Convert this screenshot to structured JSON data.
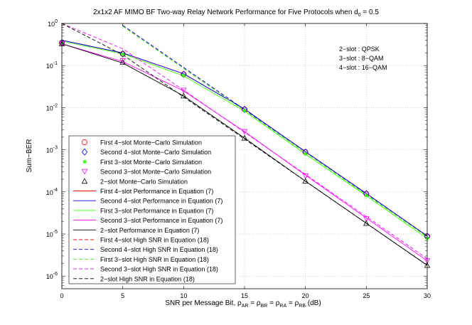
{
  "chart_data": {
    "type": "line",
    "title_main": "2x1x2 AF MIMO BF Two-way Relay Network Performance for Five Protocols when d",
    "title_sub": "0",
    "title_tail": " = 0.5",
    "xlabel": {
      "prefix": "SNR per Message Bit, ",
      "rho": "ρ",
      "sub_AR": "AR",
      "sub_BR": "BR",
      "sub_RA": "RA",
      "sub_RB": "RB",
      "eq": " = ",
      "unit": " (dB)"
    },
    "ylabel": "Sum−BER",
    "xlim": [
      0,
      30
    ],
    "ylim_log10": [
      -6.3,
      0
    ],
    "x_ticks": [
      "0",
      "5",
      "10",
      "15",
      "20",
      "25",
      "30"
    ],
    "x_tick_values": [
      0,
      5,
      10,
      15,
      20,
      25,
      30
    ],
    "y_ticks": [
      {
        "base": "10",
        "exp": "0",
        "value": 0
      },
      {
        "base": "10",
        "exp": "-1",
        "value": -1
      },
      {
        "base": "10",
        "exp": "-2",
        "value": -2
      },
      {
        "base": "10",
        "exp": "-3",
        "value": -3
      },
      {
        "base": "10",
        "exp": "-4",
        "value": -4
      },
      {
        "base": "10",
        "exp": "-5",
        "value": -5
      },
      {
        "base": "10",
        "exp": "-6",
        "value": -6
      }
    ],
    "annotation": [
      "2−slot : QPSK",
      "3−slot : 8−QAM",
      "4−slot : 16−QAM"
    ],
    "x": [
      0,
      5,
      10,
      15,
      20,
      25,
      30
    ],
    "colors": {
      "red": "#ff0000",
      "blue": "#0000ff",
      "green": "#33ff00",
      "magenta": "#ff00ff",
      "black": "#000000",
      "grid": "#b4b4b4"
    },
    "series": [
      {
        "name": "First 4−slot Monte−Carlo Simulation",
        "style": "marker",
        "marker": "circle",
        "color": "red",
        "values": [
          0.35,
          0.19,
          0.062,
          0.0091,
          0.00088,
          9e-05,
          8.8e-06
        ]
      },
      {
        "name": "Second 4−slot Monte−Carlo Simulation",
        "style": "marker",
        "marker": "diamond",
        "color": "blue",
        "values": [
          0.35,
          0.19,
          0.062,
          0.0091,
          0.00088,
          9e-05,
          8.8e-06
        ]
      },
      {
        "name": "First 3−slot Monte−Carlo Simulation",
        "style": "marker",
        "marker": "star",
        "color": "green",
        "values": [
          0.35,
          0.185,
          0.058,
          0.0085,
          0.0008,
          8.2e-05,
          7.8e-06
        ]
      },
      {
        "name": "Second 3−slot Monte−Carlo Simulation",
        "style": "marker",
        "marker": "triangle-down",
        "color": "magenta",
        "values": [
          0.33,
          0.13,
          0.026,
          0.0027,
          0.00024,
          2.3e-05,
          2.3e-06
        ]
      },
      {
        "name": "2−slot Monte−Carlo Simulation",
        "style": "marker",
        "marker": "triangle-up",
        "color": "black",
        "values": [
          0.33,
          0.12,
          0.019,
          0.0019,
          0.00018,
          1.8e-05,
          1.8e-06
        ]
      },
      {
        "name": "First 4−slot Performance in Equation (7)",
        "style": "solid",
        "color": "red",
        "values": [
          0.4,
          0.2,
          0.064,
          0.0093,
          0.0009,
          9.2e-05,
          8.9e-06
        ]
      },
      {
        "name": "Second 4−slot Performance in Equation (7)",
        "style": "solid",
        "color": "blue",
        "values": [
          0.4,
          0.2,
          0.064,
          0.0093,
          0.0009,
          9.2e-05,
          8.9e-06
        ]
      },
      {
        "name": "First 3−slot Performance in Equation (7)",
        "style": "solid",
        "color": "green",
        "values": [
          0.38,
          0.19,
          0.057,
          0.0083,
          0.00079,
          8.1e-05,
          7.8e-06
        ]
      },
      {
        "name": "Second 3−slot Performance in Equation (7)",
        "style": "solid",
        "color": "magenta",
        "values": [
          0.33,
          0.125,
          0.025,
          0.0027,
          0.00025,
          2.4e-05,
          2.3e-06
        ]
      },
      {
        "name": "2−slot Performance in Equation (7)",
        "style": "solid",
        "color": "black",
        "values": [
          0.33,
          0.115,
          0.019,
          0.0019,
          0.00018,
          1.8e-05,
          1.8e-06
        ]
      },
      {
        "name": "First 4−slot High SNR in Equation (18)",
        "style": "dashed",
        "color": "red",
        "values": [
          null,
          0.9,
          0.09,
          0.009,
          0.0009,
          9e-05,
          9e-06
        ]
      },
      {
        "name": "Second 4−slot High SNR in Equation (18)",
        "style": "dashed",
        "color": "blue",
        "values": [
          null,
          0.9,
          0.09,
          0.009,
          0.0009,
          9e-05,
          9e-06
        ]
      },
      {
        "name": "First 3−slot High SNR in Equation (18)",
        "style": "dashed",
        "color": "green",
        "values": [
          null,
          0.85,
          0.085,
          0.0085,
          0.00085,
          8.5e-05,
          8.5e-06
        ]
      },
      {
        "name": "Second 3−slot High SNR in Equation (18)",
        "style": "dashed",
        "color": "magenta",
        "values": [
          1.0,
          0.25,
          0.026,
          0.0026,
          0.00026,
          2.6e-05,
          2.6e-06
        ]
      },
      {
        "name": "2−slot High SNR in Equation (18)",
        "style": "dashed",
        "color": "black",
        "values": [
          1.0,
          0.18,
          0.018,
          0.0018,
          0.00018,
          1.8e-05,
          1.8e-06
        ]
      }
    ],
    "legend_position": "lower-left"
  }
}
